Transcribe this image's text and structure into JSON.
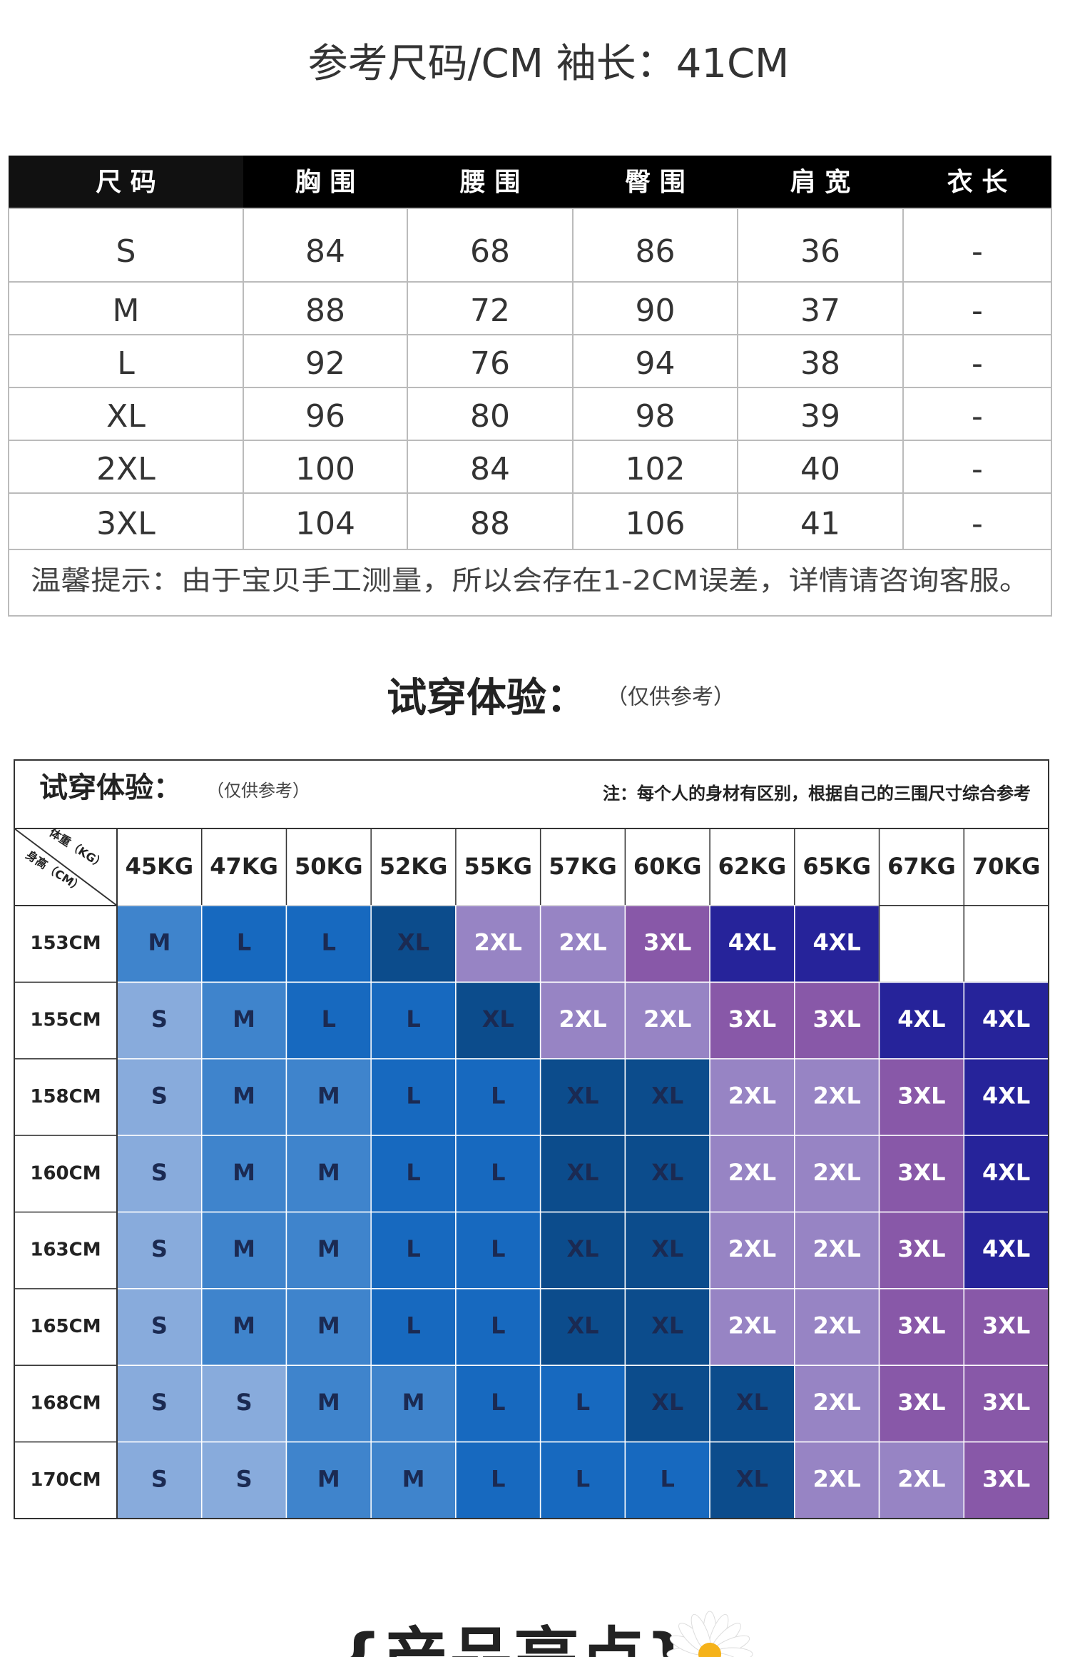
{
  "size_chart": {
    "title": "参考尺码/CM  袖长：41CM",
    "headers": [
      "尺 码",
      "胸 围",
      "腰 围",
      "臀 围",
      "肩 宽",
      "衣 长"
    ],
    "rows": [
      [
        "S",
        "84",
        "68",
        "86",
        "36",
        "-"
      ],
      [
        "M",
        "88",
        "72",
        "90",
        "37",
        "-"
      ],
      [
        "L",
        "92",
        "76",
        "94",
        "38",
        "-"
      ],
      [
        "XL",
        "96",
        "80",
        "98",
        "39",
        "-"
      ],
      [
        "2XL",
        "100",
        "84",
        "102",
        "40",
        "-"
      ],
      [
        "3XL",
        "104",
        "88",
        "106",
        "41",
        "-"
      ]
    ],
    "note": "温馨提示：由于宝贝手工测量，所以会存在1-2CM误差，详情请咨询客服。"
  },
  "fit_section": {
    "title": "试穿体验：",
    "subtitle": "（仅供参考）"
  },
  "fit_table": {
    "title": "试穿体验：",
    "subtitle": "（仅供参考）",
    "note": "注：每个人的身材有区别，根据自己的三围尺寸综合参考",
    "corner_top": "体重（KG）",
    "corner_bottom": "身高（CM）",
    "weights": [
      "45KG",
      "47KG",
      "50KG",
      "52KG",
      "55KG",
      "57KG",
      "60KG",
      "62KG",
      "65KG",
      "67KG",
      "70KG"
    ],
    "rows": [
      {
        "height": "153CM",
        "sizes": [
          "M",
          "L",
          "L",
          "XL",
          "2XL",
          "2XL",
          "3XL",
          "4XL",
          "4XL",
          null,
          null
        ]
      },
      {
        "height": "155CM",
        "sizes": [
          "S",
          "M",
          "L",
          "L",
          "XL",
          "2XL",
          "2XL",
          "3XL",
          "3XL",
          "4XL",
          "4XL"
        ]
      },
      {
        "height": "158CM",
        "sizes": [
          "S",
          "M",
          "M",
          "L",
          "L",
          "XL",
          "XL",
          "2XL",
          "2XL",
          "3XL",
          "4XL"
        ]
      },
      {
        "height": "160CM",
        "sizes": [
          "S",
          "M",
          "M",
          "L",
          "L",
          "XL",
          "XL",
          "2XL",
          "2XL",
          "3XL",
          "4XL"
        ]
      },
      {
        "height": "163CM",
        "sizes": [
          "S",
          "M",
          "M",
          "L",
          "L",
          "XL",
          "XL",
          "2XL",
          "2XL",
          "3XL",
          "4XL"
        ]
      },
      {
        "height": "165CM",
        "sizes": [
          "S",
          "M",
          "M",
          "L",
          "L",
          "XL",
          "XL",
          "2XL",
          "2XL",
          "3XL",
          "3XL"
        ]
      },
      {
        "height": "168CM",
        "sizes": [
          "S",
          "S",
          "M",
          "M",
          "L",
          "L",
          "XL",
          "XL",
          "2XL",
          "3XL",
          "3XL"
        ]
      },
      {
        "height": "170CM",
        "sizes": [
          "S",
          "S",
          "M",
          "M",
          "L",
          "L",
          "L",
          "XL",
          "2XL",
          "2XL",
          "3XL"
        ]
      }
    ],
    "cell_colors": {
      "S": "#88abdc",
      "M": "#3f84cc",
      "L": "#1769bf",
      "XL": "#0c4c8c",
      "2XL": "#9784c4",
      "3XL": "#8858a8",
      "4XL": "#26239a"
    },
    "text_colors": {
      "S": "#1b2a52",
      "M": "#1b2a52",
      "L": "#1b2a52",
      "XL": "#1b2a52",
      "2XL": "#ffffff",
      "3XL": "#ffffff",
      "4XL": "#ffffff"
    }
  },
  "footer": {
    "title": "{产品亮点}"
  }
}
